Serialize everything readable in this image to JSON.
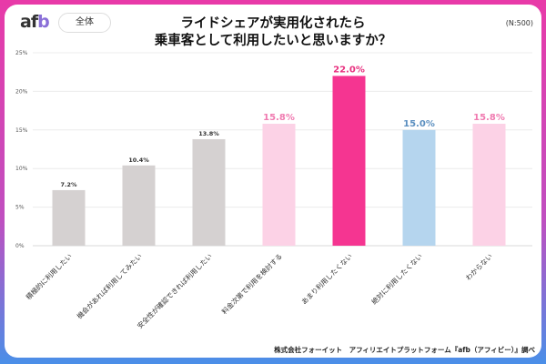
{
  "header": {
    "logo": "afb",
    "segment": "全体",
    "title_line1": "ライドシェアが実用化されたら",
    "title_line2": "乗車客として利用したいと思いますか？",
    "sample": "(N:500)"
  },
  "footer": {
    "source": "株式会社フォーイット　アフィリエイトプラットフォーム『afb（アフィビー）』調べ"
  },
  "chart_data": {
    "type": "bar",
    "categories": [
      "積極的に利用したい",
      "機会があれば利用してみたい",
      "安全性が確認できれば利用したい",
      "料金次第で利用を検討する",
      "あまり利用したくない",
      "絶対に利用したくない",
      "わからない"
    ],
    "values": [
      7.2,
      10.4,
      13.8,
      15.8,
      22.0,
      15.0,
      15.8
    ],
    "data_labels": [
      "7.2%",
      "10.4%",
      "13.8%",
      "15.8%",
      "22.0%",
      "15.0%",
      "15.8%"
    ],
    "bar_colors": [
      "#d5d1d1",
      "#d5d1d1",
      "#d5d1d1",
      "#fcd2e6",
      "#f53591",
      "#b5d5ee",
      "#fcd2e6"
    ],
    "label_colors": [
      "#333333",
      "#333333",
      "#333333",
      "#f07ab0",
      "#e8307f",
      "#5b8fc0",
      "#f07ab0"
    ],
    "yticks": [
      "0%",
      "5%",
      "10%",
      "15%",
      "20%",
      "25%"
    ],
    "ylim": [
      0,
      25
    ],
    "grid": true
  }
}
